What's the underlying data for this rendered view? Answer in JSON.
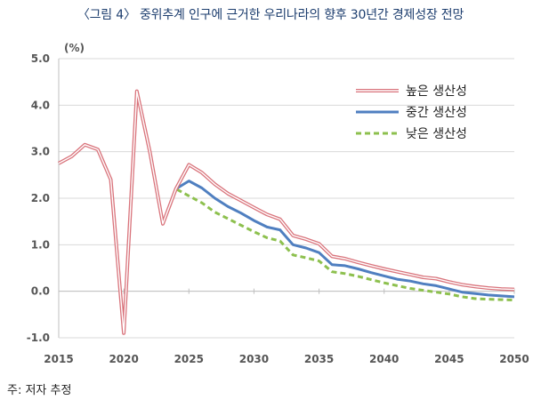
{
  "title": "〈그림 4〉 중위추계 인구에 근거한 우리나라의 향후 30년간 경제성장 전망",
  "source_note": "주: 저자 추정",
  "chart_data": {
    "type": "line",
    "unit_label": "(%)",
    "x": [
      2015,
      2016,
      2017,
      2018,
      2019,
      2020,
      2021,
      2022,
      2023,
      2024,
      2025,
      2026,
      2027,
      2028,
      2029,
      2030,
      2031,
      2032,
      2033,
      2034,
      2035,
      2036,
      2037,
      2038,
      2039,
      2040,
      2041,
      2042,
      2043,
      2044,
      2045,
      2046,
      2047,
      2048,
      2049,
      2050
    ],
    "xlim": [
      2015,
      2050
    ],
    "ylim": [
      -1.0,
      5.0
    ],
    "x_ticks": [
      "2015",
      "2020",
      "2025",
      "2030",
      "2035",
      "2040",
      "2045",
      "2050"
    ],
    "y_ticks": [
      "-1.0",
      "0.0",
      "1.0",
      "2.0",
      "3.0",
      "4.0",
      "5.0"
    ],
    "legend_position": "top-right",
    "series": [
      {
        "name": "높은 생산성",
        "color": "#d9747c",
        "style": "double",
        "values": [
          2.75,
          2.9,
          3.15,
          3.05,
          2.4,
          -0.9,
          4.3,
          3.0,
          1.45,
          2.2,
          2.72,
          2.55,
          2.3,
          2.1,
          1.95,
          1.8,
          1.65,
          1.55,
          1.2,
          1.12,
          1.02,
          0.75,
          0.7,
          0.62,
          0.55,
          0.48,
          0.42,
          0.36,
          0.3,
          0.27,
          0.2,
          0.14,
          0.1,
          0.07,
          0.05,
          0.04
        ]
      },
      {
        "name": "중간 생산성",
        "color": "#4f7fc0",
        "style": "solid",
        "values": [
          2.75,
          2.9,
          3.15,
          3.05,
          2.4,
          -0.9,
          4.3,
          3.0,
          1.45,
          2.2,
          2.37,
          2.22,
          2.0,
          1.82,
          1.68,
          1.52,
          1.38,
          1.32,
          1.0,
          0.93,
          0.83,
          0.57,
          0.55,
          0.48,
          0.4,
          0.33,
          0.26,
          0.22,
          0.16,
          0.12,
          0.05,
          -0.02,
          -0.05,
          -0.08,
          -0.1,
          -0.12
        ]
      },
      {
        "name": "낮은 생산성",
        "color": "#8dc04e",
        "style": "dashed",
        "values": [
          2.75,
          2.9,
          3.15,
          3.05,
          2.4,
          -0.9,
          4.3,
          3.0,
          1.45,
          2.2,
          2.05,
          1.9,
          1.7,
          1.56,
          1.42,
          1.28,
          1.15,
          1.08,
          0.78,
          0.72,
          0.65,
          0.42,
          0.38,
          0.32,
          0.25,
          0.18,
          0.12,
          0.06,
          0.02,
          -0.02,
          -0.06,
          -0.12,
          -0.16,
          -0.17,
          -0.18,
          -0.19
        ]
      }
    ]
  }
}
